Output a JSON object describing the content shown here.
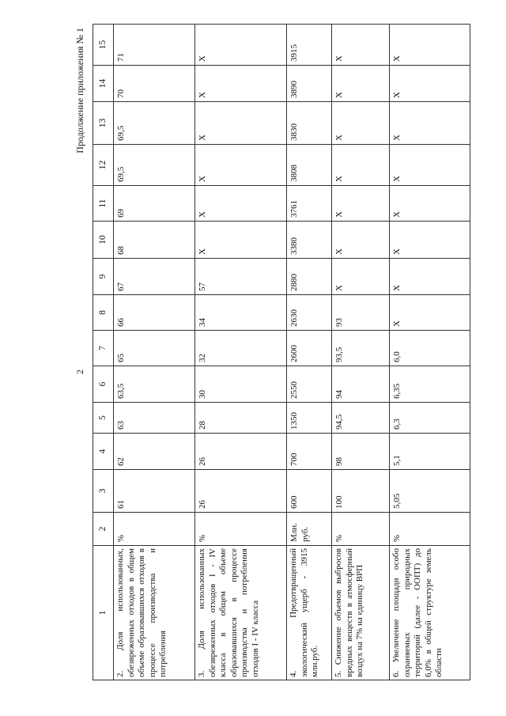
{
  "page_number": "2",
  "caption": "Продолжение приложения № 1",
  "table": {
    "headers": [
      "1",
      "2",
      "3",
      "4",
      "5",
      "6",
      "7",
      "8",
      "9",
      "10",
      "11",
      "12",
      "13",
      "14",
      "15"
    ],
    "rows": [
      {
        "desc": "2. Доля использованных, обезвреженных отходов в общем объеме образовавшихся отходов в процессе производства и потребления",
        "unit": "%",
        "values": [
          "61",
          "62",
          "63",
          "63,5",
          "65",
          "66",
          "67",
          "68",
          "69",
          "69,5",
          "69,5",
          "70",
          "71"
        ]
      },
      {
        "desc": "3. Доля использованных обезвреженных отходов I - IV класса в общем объеме образовавшихся в процессе производства и потребления отходов I - IV класса",
        "unit": "%",
        "values": [
          "26",
          "26",
          "28",
          "30",
          "32",
          "34",
          "57",
          "X",
          "X",
          "X",
          "X",
          "X",
          "X"
        ]
      },
      {
        "desc": "4. Предотвращенный экологический ущерб - 3915 млн.руб.",
        "unit": "Млн. руб.",
        "values": [
          "600",
          "700",
          "1350",
          "2550",
          "2600",
          "2630",
          "2880",
          "3380",
          "3761",
          "3808",
          "3830",
          "3890",
          "3915"
        ]
      },
      {
        "desc": "5. Снижение объемов выбросов вредных веществ в атмосферный воздух на 7% на единицу ВРП",
        "unit": "%",
        "values": [
          "100",
          "98",
          "94,5",
          "94",
          "93,5",
          "93",
          "X",
          "X",
          "X",
          "X",
          "X",
          "X",
          "X"
        ]
      },
      {
        "desc": "6. Увеличение площади особо охраняемых природных территорий (далее - ООПТ) до 6,0% в общей структуре земель области",
        "unit": "%",
        "values": [
          "5,05",
          "5,1",
          "6,3",
          "6,35",
          "6,0",
          "X",
          "X",
          "X",
          "X",
          "X",
          "X",
          "X",
          "X"
        ]
      }
    ]
  }
}
